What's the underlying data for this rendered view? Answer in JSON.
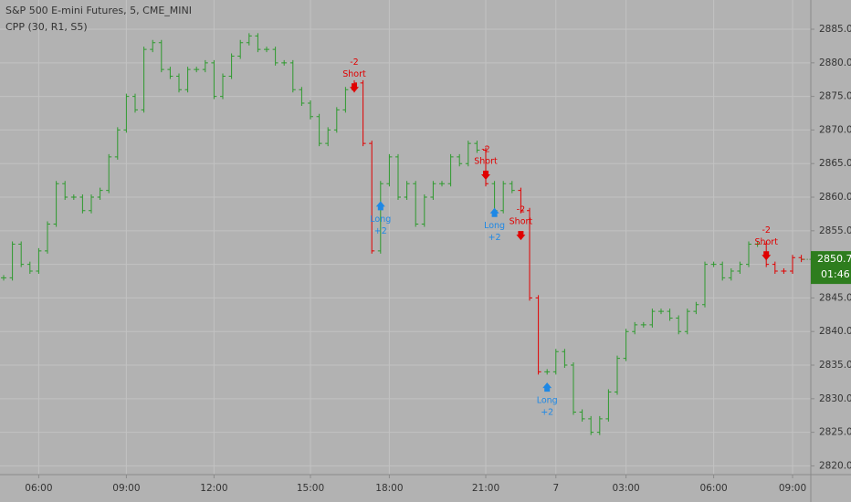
{
  "chart_data": {
    "type": "price_bars",
    "title": "S&P 500 E-mini Futures, 5, CME_MINI",
    "subtitle": "CPP (30, R1, S5)",
    "values": [
      2848,
      2853,
      2850,
      2849,
      2852,
      2856,
      2862,
      2860,
      2860,
      2858,
      2860,
      2861,
      2866,
      2870,
      2875,
      2873,
      2882,
      2883,
      2879,
      2878,
      2876,
      2879,
      2879,
      2880,
      2875,
      2878,
      2881,
      2883,
      2884,
      2882,
      2882,
      2880,
      2880,
      2876,
      2874,
      2872,
      2868,
      2870,
      2873,
      2876,
      2877,
      2868,
      2852,
      2862,
      2866,
      2860,
      2862,
      2856,
      2860,
      2862,
      2862,
      2866,
      2865,
      2868,
      2867,
      2862,
      2858,
      2862,
      2861,
      2858,
      2845,
      2834,
      2834,
      2837,
      2835,
      2828,
      2827,
      2825,
      2827,
      2831,
      2836,
      2840,
      2841,
      2841,
      2843,
      2843,
      2842,
      2840,
      2843,
      2844,
      2850,
      2850,
      2848,
      2849,
      2850,
      2853,
      2853,
      2850,
      2849,
      2849,
      2851,
      2850.75
    ],
    "up_color": "#2e9a2e",
    "down_color": "#e00000",
    "xticks": [
      {
        "value": 4,
        "label": "06:00"
      },
      {
        "value": 14,
        "label": "09:00"
      },
      {
        "value": 24,
        "label": "12:00"
      },
      {
        "value": 35,
        "label": "15:00"
      },
      {
        "value": 44,
        "label": "18:00"
      },
      {
        "value": 55,
        "label": "21:00"
      },
      {
        "value": 63,
        "label": "7"
      },
      {
        "value": 71,
        "label": "03:00"
      },
      {
        "value": 81,
        "label": "06:00"
      },
      {
        "value": 90,
        "label": "09:00"
      }
    ],
    "ylim": [
      2818.7,
      2889.35
    ],
    "yticks": [
      {
        "value": 2820,
        "label": "2820.00"
      },
      {
        "value": 2825,
        "label": "2825.00"
      },
      {
        "value": 2830,
        "label": "2830.00"
      },
      {
        "value": 2835,
        "label": "2835.00"
      },
      {
        "value": 2840,
        "label": "2840.00"
      },
      {
        "value": 2845,
        "label": "2845.00"
      },
      {
        "value": 2850,
        "label": "2850.00"
      },
      {
        "value": 2855,
        "label": "2855.00"
      },
      {
        "value": 2860,
        "label": "2860.00"
      },
      {
        "value": 2865,
        "label": "2865.00"
      },
      {
        "value": 2870,
        "label": "2870.00"
      },
      {
        "value": 2875,
        "label": "2875.00"
      },
      {
        "value": 2880,
        "label": "2880.00"
      },
      {
        "value": 2885,
        "label": "2885.00"
      }
    ],
    "grid": true,
    "signals": [
      {
        "label": "Short",
        "qty": "-2",
        "bar": 40,
        "price": 2876,
        "color": "#e00000"
      },
      {
        "label": "Long",
        "qty": "+2",
        "bar": 43,
        "price": 2859,
        "color": "#1e88e5"
      },
      {
        "label": "Short",
        "qty": "-2",
        "bar": 55,
        "price": 2863,
        "color": "#e00000"
      },
      {
        "label": "Long",
        "qty": "+2",
        "bar": 56,
        "price": 2858,
        "color": "#1e88e5"
      },
      {
        "label": "Short",
        "qty": "-2",
        "bar": 59,
        "price": 2854,
        "color": "#e00000"
      },
      {
        "label": "Long",
        "qty": "+2",
        "bar": 62,
        "price": 2832,
        "color": "#1e88e5"
      },
      {
        "label": "Short",
        "qty": "-2",
        "bar": 87,
        "price": 2851,
        "color": "#e00000"
      }
    ],
    "last_price_color": "#2e7d1e",
    "countdown": "01:46"
  }
}
